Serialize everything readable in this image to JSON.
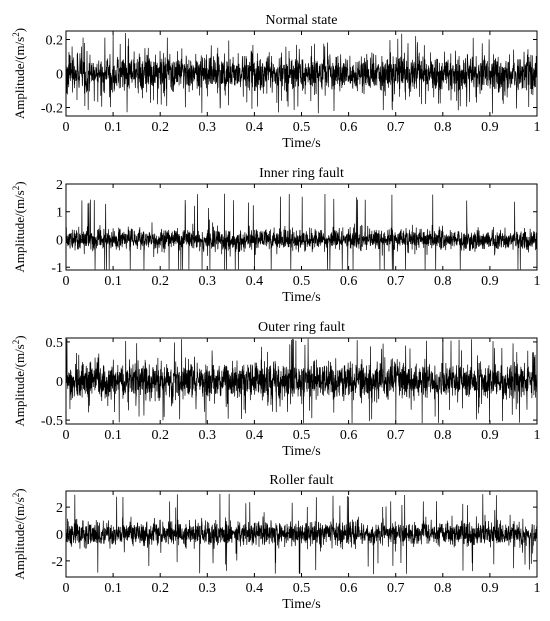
{
  "chart_data": [
    {
      "type": "line",
      "title": "Normal state",
      "xlabel": "Time/s",
      "ylabel": "Amplitude/(m/s",
      "ylabel_sup": "2",
      "ylabel_close": ")",
      "xlim": [
        0,
        1
      ],
      "ylim": [
        -0.25,
        0.25
      ],
      "xticks": [
        "0",
        "0.1",
        "0.2",
        "0.3",
        "0.4",
        "0.5",
        "0.6",
        "0.7",
        "0.8",
        "0.9",
        "1"
      ],
      "yticks": [
        {
          "v": -0.2,
          "label": "-0.2"
        },
        {
          "v": 0,
          "label": "0"
        },
        {
          "v": 0.2,
          "label": "0.2"
        }
      ],
      "series": [
        {
          "typical_amplitude": 0.13,
          "peak_amplitude": 0.24
        }
      ],
      "grid": false
    },
    {
      "type": "line",
      "title": "Inner ring fault",
      "xlabel": "Time/s",
      "ylabel": "Amplitude/(m/s",
      "ylabel_sup": "2",
      "ylabel_close": ")",
      "xlim": [
        0,
        1
      ],
      "ylim": [
        -1.1,
        2
      ],
      "xticks": [
        "0",
        "0.1",
        "0.2",
        "0.3",
        "0.4",
        "0.5",
        "0.6",
        "0.7",
        "0.8",
        "0.9",
        "1"
      ],
      "yticks": [
        {
          "v": -1,
          "label": "-1"
        },
        {
          "v": 0,
          "label": "0"
        },
        {
          "v": 1,
          "label": "1"
        },
        {
          "v": 2,
          "label": "2"
        }
      ],
      "series": [
        {
          "typical_amplitude": 0.45,
          "peak_amplitude": 1.7
        }
      ],
      "grid": false
    },
    {
      "type": "line",
      "title": "Outer ring fault",
      "xlabel": "Time/s",
      "ylabel": "Amplitude/(m/s",
      "ylabel_sup": "2",
      "ylabel_close": ")",
      "xlim": [
        0,
        1
      ],
      "ylim": [
        -0.55,
        0.55
      ],
      "xticks": [
        "0",
        "0.1",
        "0.2",
        "0.3",
        "0.4",
        "0.5",
        "0.6",
        "0.7",
        "0.8",
        "0.9",
        "1"
      ],
      "yticks": [
        {
          "v": -0.5,
          "label": "-0.5"
        },
        {
          "v": 0,
          "label": "0"
        },
        {
          "v": 0.5,
          "label": "0.5"
        }
      ],
      "series": [
        {
          "typical_amplitude": 0.28,
          "peak_amplitude": 0.55
        }
      ],
      "grid": false
    },
    {
      "type": "line",
      "title": "Roller fault",
      "xlabel": "Time/s",
      "ylabel": "Amplitude/(m/s",
      "ylabel_sup": "2",
      "ylabel_close": ")",
      "xlim": [
        0,
        1
      ],
      "ylim": [
        -3.2,
        3.2
      ],
      "xticks": [
        "0",
        "0.1",
        "0.2",
        "0.3",
        "0.4",
        "0.5",
        "0.6",
        "0.7",
        "0.8",
        "0.9",
        "1"
      ],
      "yticks": [
        {
          "v": -2,
          "label": "-2"
        },
        {
          "v": 0,
          "label": "0"
        },
        {
          "v": 2,
          "label": "2"
        }
      ],
      "series": [
        {
          "typical_amplitude": 1.1,
          "peak_amplitude": 3.0
        }
      ],
      "grid": false
    }
  ]
}
